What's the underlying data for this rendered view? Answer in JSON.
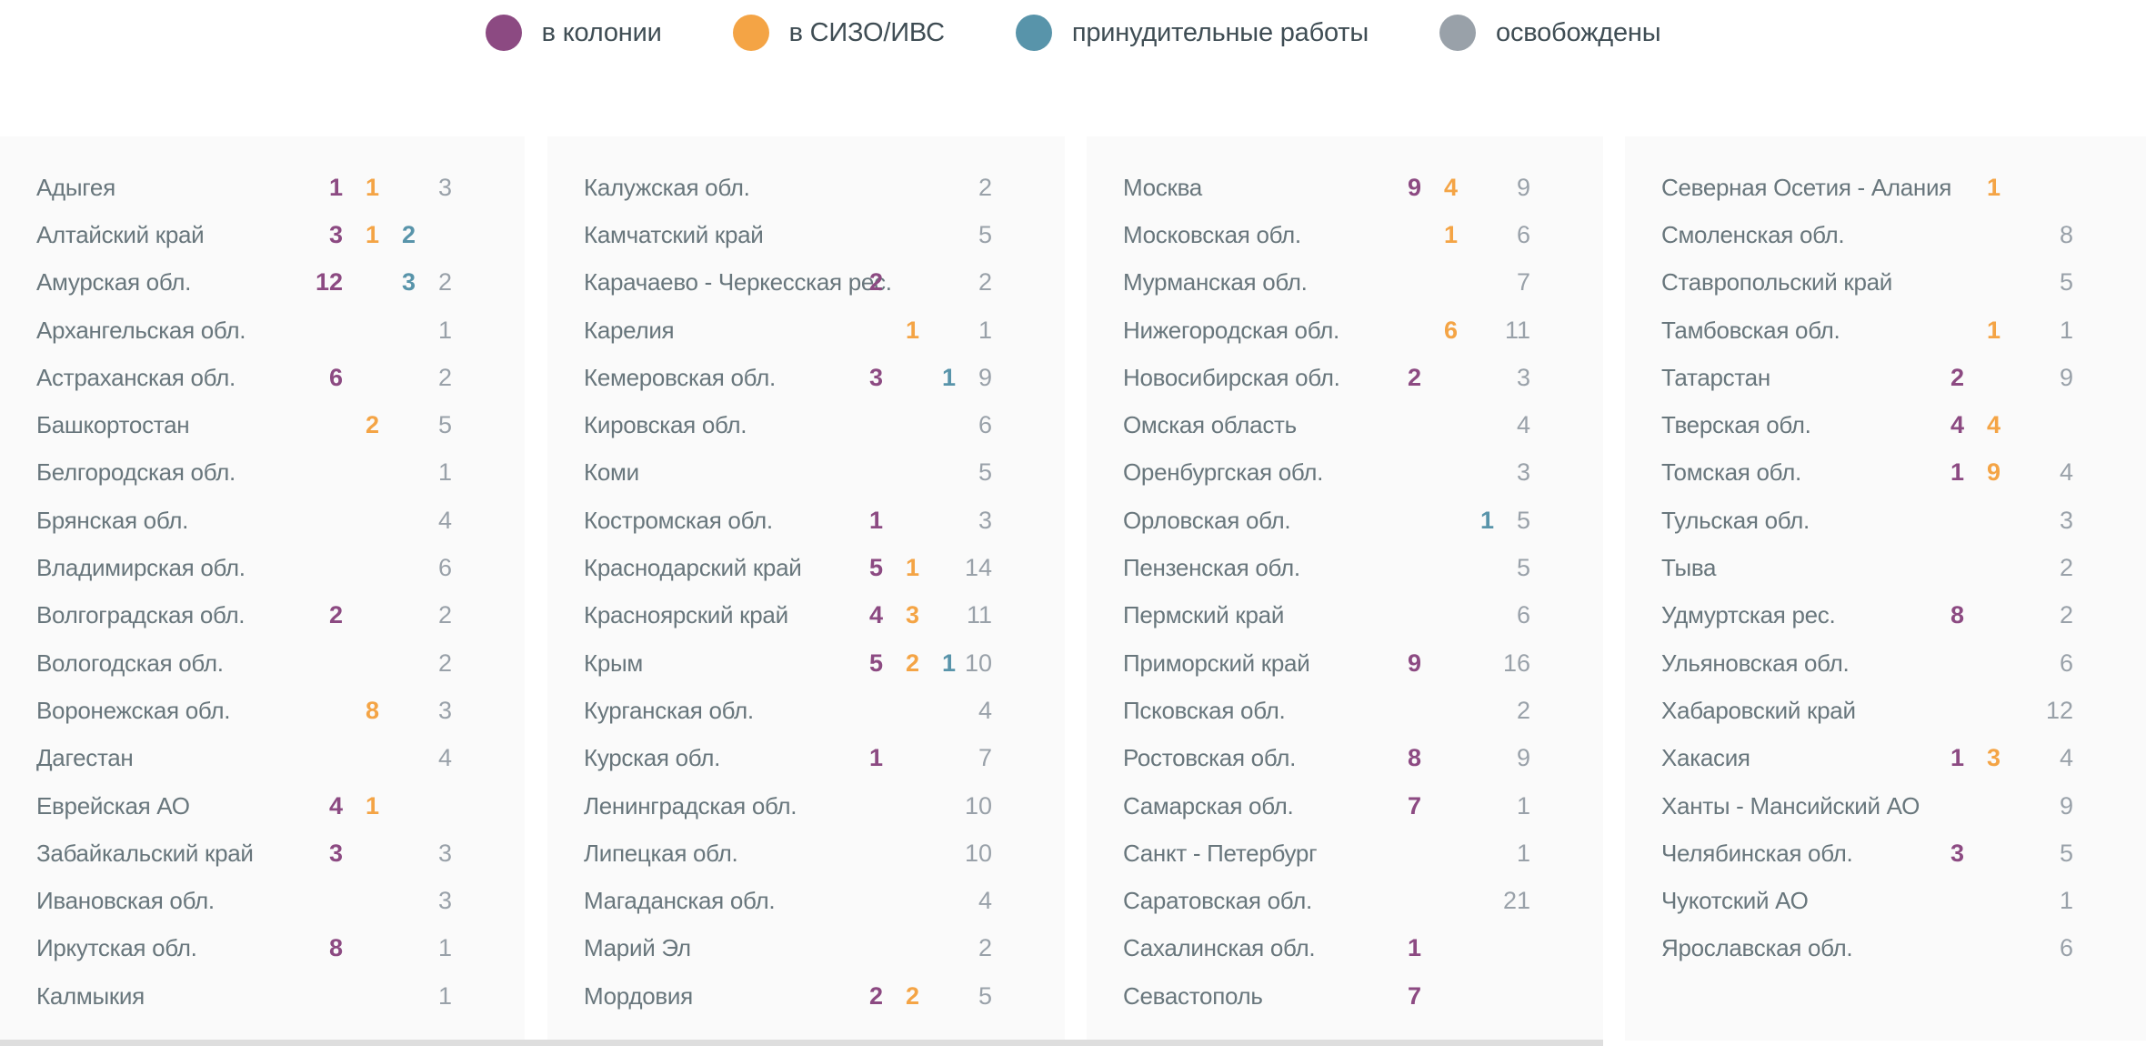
{
  "chart_data": {
    "type": "table",
    "title": "",
    "legend_position": "top-center",
    "legend": [
      {
        "key": "colony",
        "label": "в колонии"
      },
      {
        "key": "sizo",
        "label": "в СИЗО/ИВС"
      },
      {
        "key": "forced",
        "label": "принудительные работы"
      },
      {
        "key": "released",
        "label": "освобождены"
      }
    ],
    "value_columns_order": [
      "colony",
      "sizo",
      "forced",
      "released"
    ],
    "columns": [
      {
        "rows": [
          {
            "name": "Адыгея",
            "colony": "1",
            "sizo": "1",
            "forced": "",
            "released": "3"
          },
          {
            "name": "Алтайский край",
            "colony": "3",
            "sizo": "1",
            "forced": "2",
            "released": ""
          },
          {
            "name": "Амурская обл.",
            "colony": "12",
            "sizo": "",
            "forced": "3",
            "released": "2"
          },
          {
            "name": "Архангельская обл.",
            "colony": "",
            "sizo": "",
            "forced": "",
            "released": "1"
          },
          {
            "name": "Астраханская обл.",
            "colony": "6",
            "sizo": "",
            "forced": "",
            "released": "2"
          },
          {
            "name": "Башкортостан",
            "colony": "",
            "sizo": "2",
            "forced": "",
            "released": "5"
          },
          {
            "name": "Белгородская обл.",
            "colony": "",
            "sizo": "",
            "forced": "",
            "released": "1"
          },
          {
            "name": "Брянская обл.",
            "colony": "",
            "sizo": "",
            "forced": "",
            "released": "4"
          },
          {
            "name": "Владимирская обл.",
            "colony": "",
            "sizo": "",
            "forced": "",
            "released": "6"
          },
          {
            "name": "Волгоградская обл.",
            "colony": "2",
            "sizo": "",
            "forced": "",
            "released": "2"
          },
          {
            "name": "Вологодская обл.",
            "colony": "",
            "sizo": "",
            "forced": "",
            "released": "2"
          },
          {
            "name": "Воронежская обл.",
            "colony": "",
            "sizo": "8",
            "forced": "",
            "released": "3"
          },
          {
            "name": "Дагестан",
            "colony": "",
            "sizo": "",
            "forced": "",
            "released": "4"
          },
          {
            "name": "Еврейская АО",
            "colony": "4",
            "sizo": "1",
            "forced": "",
            "released": ""
          },
          {
            "name": "Забайкальский край",
            "colony": "3",
            "sizo": "",
            "forced": "",
            "released": "3"
          },
          {
            "name": "Ивановская обл.",
            "colony": "",
            "sizo": "",
            "forced": "",
            "released": "3"
          },
          {
            "name": "Иркутская обл.",
            "colony": "8",
            "sizo": "",
            "forced": "",
            "released": "1"
          },
          {
            "name": "Калмыкия",
            "colony": "",
            "sizo": "",
            "forced": "",
            "released": "1"
          }
        ]
      },
      {
        "rows": [
          {
            "name": "Калужская обл.",
            "colony": "",
            "sizo": "",
            "forced": "",
            "released": "2"
          },
          {
            "name": "Камчатский край",
            "colony": "",
            "sizo": "",
            "forced": "",
            "released": "5"
          },
          {
            "name": "Карачаево - Черкесская рес.",
            "colony": "2",
            "sizo": "",
            "forced": "",
            "released": "2"
          },
          {
            "name": "Карелия",
            "colony": "",
            "sizo": "1",
            "forced": "",
            "released": "1"
          },
          {
            "name": "Кемеровская обл.",
            "colony": "3",
            "sizo": "",
            "forced": "1",
            "released": "9"
          },
          {
            "name": "Кировская обл.",
            "colony": "",
            "sizo": "",
            "forced": "",
            "released": "6"
          },
          {
            "name": "Коми",
            "colony": "",
            "sizo": "",
            "forced": "",
            "released": "5"
          },
          {
            "name": "Костромская обл.",
            "colony": "1",
            "sizo": "",
            "forced": "",
            "released": "3"
          },
          {
            "name": "Краснодарский край",
            "colony": "5",
            "sizo": "1",
            "forced": "",
            "released": "14"
          },
          {
            "name": "Красноярский край",
            "colony": "4",
            "sizo": "3",
            "forced": "",
            "released": "11"
          },
          {
            "name": "Крым",
            "colony": "5",
            "sizo": "2",
            "forced": "1",
            "released": "10"
          },
          {
            "name": "Курганская обл.",
            "colony": "",
            "sizo": "",
            "forced": "",
            "released": "4"
          },
          {
            "name": "Курская обл.",
            "colony": "1",
            "sizo": "",
            "forced": "",
            "released": "7"
          },
          {
            "name": "Ленинградская обл.",
            "colony": "",
            "sizo": "",
            "forced": "",
            "released": "10"
          },
          {
            "name": "Липецкая обл.",
            "colony": "",
            "sizo": "",
            "forced": "",
            "released": "10"
          },
          {
            "name": "Магаданская обл.",
            "colony": "",
            "sizo": "",
            "forced": "",
            "released": "4"
          },
          {
            "name": "Марий Эл",
            "colony": "",
            "sizo": "",
            "forced": "",
            "released": "2"
          },
          {
            "name": "Мордовия",
            "colony": "2",
            "sizo": "2",
            "forced": "",
            "released": "5"
          }
        ]
      },
      {
        "rows": [
          {
            "name": "Москва",
            "colony": "9",
            "sizo": "4",
            "forced": "",
            "released": "9"
          },
          {
            "name": "Московская обл.",
            "colony": "",
            "sizo": "1",
            "forced": "",
            "released": "6"
          },
          {
            "name": "Мурманская обл.",
            "colony": "",
            "sizo": "",
            "forced": "",
            "released": "7"
          },
          {
            "name": "Нижегородская обл.",
            "colony": "",
            "sizo": "6",
            "forced": "",
            "released": "11"
          },
          {
            "name": "Новосибирская обл.",
            "colony": "2",
            "sizo": "",
            "forced": "",
            "released": "3"
          },
          {
            "name": "Омская область",
            "colony": "",
            "sizo": "",
            "forced": "",
            "released": "4"
          },
          {
            "name": "Оренбургская обл.",
            "colony": "",
            "sizo": "",
            "forced": "",
            "released": "3"
          },
          {
            "name": "Орловская обл.",
            "colony": "",
            "sizo": "",
            "forced": "1",
            "released": "5"
          },
          {
            "name": "Пензенская обл.",
            "colony": "",
            "sizo": "",
            "forced": "",
            "released": "5"
          },
          {
            "name": "Пермский край",
            "colony": "",
            "sizo": "",
            "forced": "",
            "released": "6"
          },
          {
            "name": "Приморский край",
            "colony": "9",
            "sizo": "",
            "forced": "",
            "released": "16"
          },
          {
            "name": "Псковская обл.",
            "colony": "",
            "sizo": "",
            "forced": "",
            "released": "2"
          },
          {
            "name": "Ростовская обл.",
            "colony": "8",
            "sizo": "",
            "forced": "",
            "released": "9"
          },
          {
            "name": "Самарская обл.",
            "colony": "7",
            "sizo": "",
            "forced": "",
            "released": "1"
          },
          {
            "name": "Санкт - Петербург",
            "colony": "",
            "sizo": "",
            "forced": "",
            "released": "1"
          },
          {
            "name": "Саратовская обл.",
            "colony": "",
            "sizo": "",
            "forced": "",
            "released": "21"
          },
          {
            "name": "Сахалинская обл.",
            "colony": "1",
            "sizo": "",
            "forced": "",
            "released": ""
          },
          {
            "name": "Севастополь",
            "colony": "7",
            "sizo": "",
            "forced": "",
            "released": ""
          }
        ]
      },
      {
        "rows": [
          {
            "name": "Северная Осетия - Алания",
            "colony": "",
            "sizo": "1",
            "forced": "",
            "released": ""
          },
          {
            "name": "Смоленская обл.",
            "colony": "",
            "sizo": "",
            "forced": "",
            "released": "8"
          },
          {
            "name": "Ставропольский край",
            "colony": "",
            "sizo": "",
            "forced": "",
            "released": "5"
          },
          {
            "name": "Тамбовская обл.",
            "colony": "",
            "sizo": "1",
            "forced": "",
            "released": "1"
          },
          {
            "name": "Татарстан",
            "colony": "2",
            "sizo": "",
            "forced": "",
            "released": "9"
          },
          {
            "name": "Тверская обл.",
            "colony": "4",
            "sizo": "4",
            "forced": "",
            "released": ""
          },
          {
            "name": "Томская обл.",
            "colony": "1",
            "sizo": "9",
            "forced": "",
            "released": "4"
          },
          {
            "name": "Тульская обл.",
            "colony": "",
            "sizo": "",
            "forced": "",
            "released": "3"
          },
          {
            "name": "Тыва",
            "colony": "",
            "sizo": "",
            "forced": "",
            "released": "2"
          },
          {
            "name": "Удмуртская рес.",
            "colony": "8",
            "sizo": "",
            "forced": "",
            "released": "2"
          },
          {
            "name": "Ульяновская обл.",
            "colony": "",
            "sizo": "",
            "forced": "",
            "released": "6"
          },
          {
            "name": "Хабаровский край",
            "colony": "",
            "sizo": "",
            "forced": "",
            "released": "12"
          },
          {
            "name": "Хакасия",
            "colony": "1",
            "sizo": "3",
            "forced": "",
            "released": "4"
          },
          {
            "name": "Ханты - Мансийский АО",
            "colony": "",
            "sizo": "",
            "forced": "",
            "released": "9"
          },
          {
            "name": "Челябинская обл.",
            "colony": "3",
            "sizo": "",
            "forced": "",
            "released": "5"
          },
          {
            "name": "Чукотский АО",
            "colony": "",
            "sizo": "",
            "forced": "",
            "released": "1"
          },
          {
            "name": "Ярославская обл.",
            "colony": "",
            "sizo": "",
            "forced": "",
            "released": "6"
          }
        ]
      }
    ]
  },
  "colors": {
    "colony": "#8c4a82",
    "sizo": "#f4a445",
    "forced": "#5894aa",
    "released": "#99a1a9",
    "name_text": "#68767c",
    "legend_text": "#3f4d54",
    "panel_bg": "#fafafa",
    "strip": "#dedede"
  }
}
